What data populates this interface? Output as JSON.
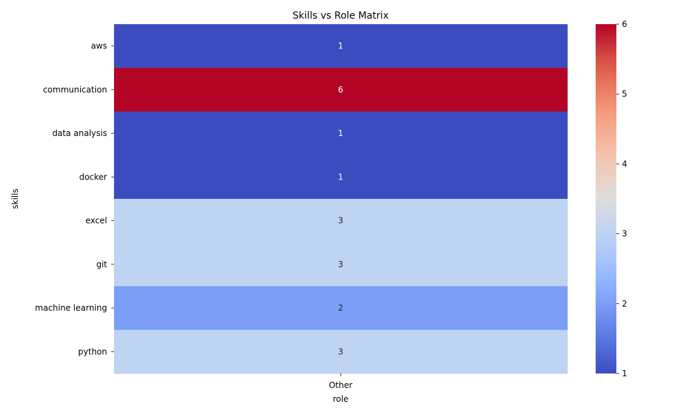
{
  "chart_data": {
    "type": "heatmap",
    "title": "Skills vs Role Matrix",
    "xlabel": "role",
    "ylabel": "skills",
    "x_categories": [
      "Other"
    ],
    "y_categories": [
      "aws",
      "communication",
      "data analysis",
      "docker",
      "excel",
      "git",
      "machine learning",
      "python"
    ],
    "values": [
      [
        1
      ],
      [
        6
      ],
      [
        1
      ],
      [
        1
      ],
      [
        3
      ],
      [
        3
      ],
      [
        2
      ],
      [
        3
      ]
    ],
    "value_labels": [
      [
        "1"
      ],
      [
        "6"
      ],
      [
        "1"
      ],
      [
        "1"
      ],
      [
        "3"
      ],
      [
        "3"
      ],
      [
        "2"
      ],
      [
        "3"
      ]
    ],
    "colormap": "coolwarm",
    "vmin": 1,
    "vmax": 6,
    "colorbar_ticks": [
      1,
      2,
      3,
      4,
      5,
      6
    ],
    "colorbar_tick_labels": [
      "1",
      "2",
      "3",
      "4",
      "5",
      "6"
    ],
    "legend": "colorbar-right",
    "grid": false
  }
}
